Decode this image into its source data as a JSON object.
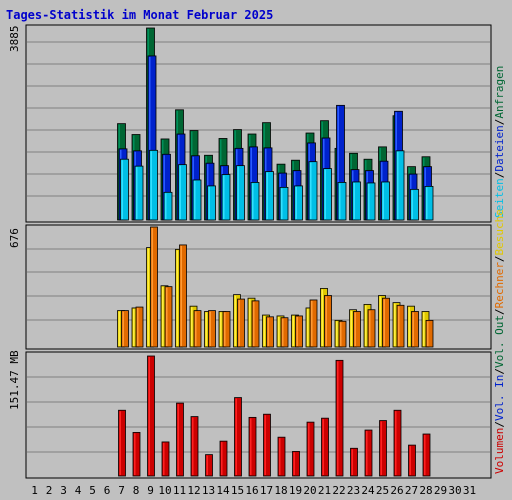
{
  "title": "Tages-Statistik im Monat Februar 2025",
  "colors": {
    "title": "#0000cc",
    "anfragen": "#006633",
    "anfragen_light": "#008f5a",
    "dateien": "#0022cc",
    "dateien_light": "#2a5cff",
    "seiten": "#00bfe6",
    "seiten_light": "#33e0ff",
    "besuche": "#e0c800",
    "besuche_light": "#ffee44",
    "rechner": "#e06a00",
    "rechner_light": "#ff9a33",
    "volumen": "#cc0000",
    "volumen_light": "#ff2222",
    "weekend_day": "#008844",
    "weekday": "#000000",
    "gridline": "#808080",
    "panel_bg": "#c0c0c0"
  },
  "legend": {
    "top": {
      "anfragen": "Anfragen",
      "sep1": "/",
      "dateien": "Dateien",
      "sep2": "/",
      "seiten": "Seiten"
    },
    "middle": {
      "besuche": "Besuche",
      "sep1": "/",
      "rechner": "Rechner",
      "sep2": "/",
      "vol_out": "Vol. Out",
      "sep3": "/"
    },
    "bottom": {
      "vol_in": "Vol. In",
      "sep1": "/",
      "volumen": "Volumen"
    }
  },
  "y_max_labels": {
    "top": "3885",
    "middle": "676",
    "bottom": "151.47 MB"
  },
  "x_labels": [
    "1",
    "2",
    "3",
    "4",
    "5",
    "6",
    "7",
    "8",
    "9",
    "10",
    "11",
    "12",
    "13",
    "14",
    "15",
    "16",
    "17",
    "18",
    "19",
    "20",
    "21",
    "22",
    "23",
    "24",
    "25",
    "26",
    "27",
    "28",
    "29",
    "30",
    "31"
  ],
  "weekend_days": [
    1,
    2,
    8,
    9,
    15,
    16,
    22,
    23,
    29,
    30
  ],
  "chart_data": [
    {
      "type": "bar",
      "name": "Anfragen / Dateien / Seiten",
      "categories": [
        "1",
        "2",
        "3",
        "4",
        "5",
        "6",
        "7",
        "8",
        "9",
        "10",
        "11",
        "12",
        "13",
        "14",
        "15",
        "16",
        "17",
        "18",
        "19",
        "20",
        "21",
        "22",
        "23",
        "24",
        "25",
        "26",
        "27",
        "28",
        "29",
        "30",
        "31"
      ],
      "ylim": [
        0,
        3885
      ],
      "series": [
        {
          "name": "Anfragen",
          "values": [
            0,
            0,
            0,
            0,
            0,
            0,
            1950,
            1730,
            3885,
            1640,
            2230,
            1810,
            1310,
            1650,
            1830,
            1740,
            1970,
            1130,
            1210,
            1760,
            2010,
            1450,
            1350,
            1230,
            1480,
            2110,
            1080,
            1280,
            0,
            0,
            0
          ]
        },
        {
          "name": "Dateien",
          "values": [
            0,
            0,
            0,
            0,
            0,
            0,
            1440,
            1400,
            3320,
            1330,
            1740,
            1300,
            1150,
            1100,
            1450,
            1480,
            1460,
            950,
            1000,
            1560,
            1660,
            2320,
            1020,
            1000,
            1190,
            2200,
            930,
            1080,
            0,
            0,
            0
          ]
        },
        {
          "name": "Seiten",
          "values": [
            0,
            0,
            0,
            0,
            0,
            0,
            1230,
            1090,
            1410,
            560,
            1120,
            810,
            690,
            920,
            1100,
            760,
            980,
            660,
            690,
            1180,
            1040,
            760,
            770,
            750,
            770,
            1400,
            620,
            680,
            0,
            0,
            0
          ]
        }
      ]
    },
    {
      "type": "bar",
      "name": "Besuche / Rechner",
      "categories": [
        "1",
        "2",
        "3",
        "4",
        "5",
        "6",
        "7",
        "8",
        "9",
        "10",
        "11",
        "12",
        "13",
        "14",
        "15",
        "16",
        "17",
        "18",
        "19",
        "20",
        "21",
        "22",
        "23",
        "24",
        "25",
        "26",
        "27",
        "28",
        "29",
        "30",
        "31"
      ],
      "ylim": [
        0,
        676
      ],
      "series": [
        {
          "name": "Besuche",
          "values": [
            0,
            0,
            0,
            0,
            0,
            0,
            205,
            220,
            560,
            345,
            550,
            230,
            200,
            200,
            295,
            275,
            180,
            175,
            180,
            220,
            330,
            150,
            210,
            240,
            290,
            250,
            230,
            200,
            0,
            0,
            0
          ]
        },
        {
          "name": "Rechner",
          "values": [
            0,
            0,
            0,
            0,
            0,
            0,
            205,
            225,
            676,
            340,
            575,
            205,
            205,
            200,
            270,
            260,
            170,
            165,
            175,
            265,
            290,
            145,
            200,
            210,
            275,
            235,
            200,
            150,
            0,
            0,
            0
          ]
        }
      ]
    },
    {
      "type": "bar",
      "name": "Volumen",
      "categories": [
        "1",
        "2",
        "3",
        "4",
        "5",
        "6",
        "7",
        "8",
        "9",
        "10",
        "11",
        "12",
        "13",
        "14",
        "15",
        "16",
        "17",
        "18",
        "19",
        "20",
        "21",
        "22",
        "23",
        "24",
        "25",
        "26",
        "27",
        "28",
        "29",
        "30",
        "31"
      ],
      "ylim": [
        0,
        151.47
      ],
      "series": [
        {
          "name": "Volumen",
          "values": [
            0,
            0,
            0,
            0,
            0,
            0,
            83,
            55,
            151.47,
            43,
            92,
            75,
            27,
            44,
            99,
            74,
            78,
            49,
            31,
            68,
            73,
            146,
            35,
            58,
            70,
            83,
            39,
            53,
            0,
            0,
            0
          ]
        }
      ]
    }
  ]
}
